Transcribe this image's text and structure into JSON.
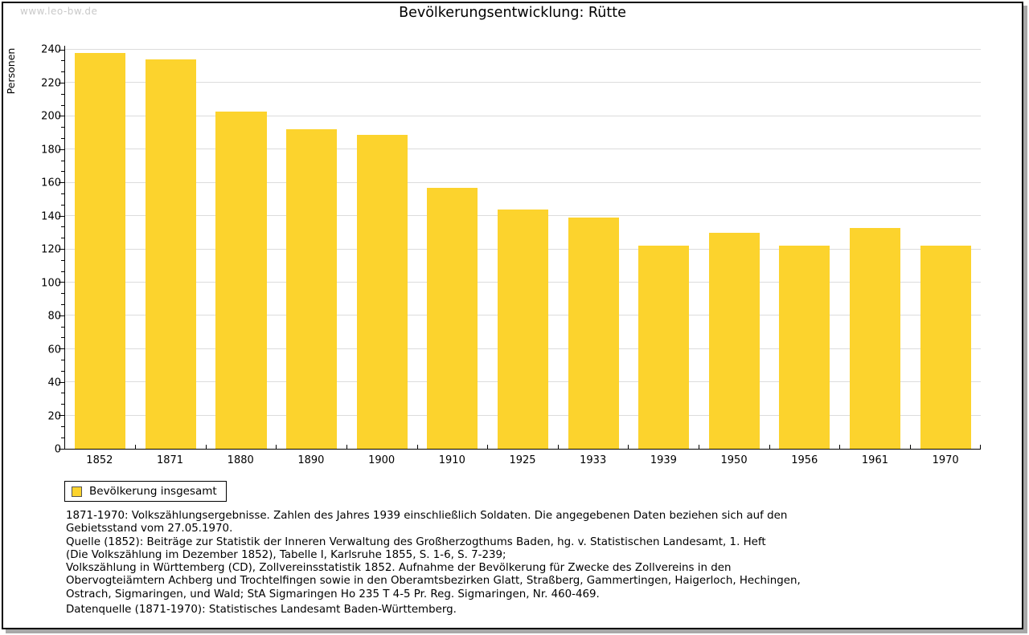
{
  "page": {
    "watermark": "www.leo-bw.de",
    "title": "Bevölkerungsentwicklung: Rütte"
  },
  "chart_data": {
    "type": "bar",
    "title": "Bevölkerungsentwicklung: Rütte",
    "xlabel": "",
    "ylabel": "Personen",
    "ylim": [
      0,
      240
    ],
    "ytick_step": 20,
    "minor_ticks_per_interval": 2,
    "grid": true,
    "bar_color": "#fcd32d",
    "categories": [
      "1852",
      "1871",
      "1880",
      "1890",
      "1900",
      "1910",
      "1925",
      "1933",
      "1939",
      "1950",
      "1956",
      "1961",
      "1970"
    ],
    "values": [
      238,
      234,
      203,
      192,
      189,
      157,
      144,
      139,
      122,
      130,
      122,
      133,
      122
    ],
    "series_name": "Bevölkerung insgesamt",
    "legend_position": "bottom-left"
  },
  "legend": {
    "label": "Bevölkerung insgesamt",
    "swatch_color": "#fcd32d"
  },
  "footnotes": {
    "lines": [
      "1871-1970: Volkszählungsergebnisse. Zahlen des Jahres 1939 einschließlich Soldaten. Die angegebenen Daten beziehen sich auf den",
      "Gebietsstand vom 27.05.1970.",
      "Quelle (1852): Beiträge zur Statistik der Inneren Verwaltung des Großherzogthums Baden, hg. v. Statistischen Landesamt, 1. Heft",
      "(Die Volkszählung im Dezember 1852), Tabelle I, Karlsruhe 1855, S. 1-6, S. 7-239;",
      "Volkszählung in Württemberg (CD), Zollvereinsstatistik 1852. Aufnahme der Bevölkerung für Zwecke des Zollvereins in den",
      "Obervogteiämtern Achberg und Trochtelfingen sowie in den Oberamtsbezirken Glatt, Straßberg, Gammertingen, Haigerloch, Hechingen,",
      "Ostrach, Sigmaringen, und Wald; StA Sigmaringen Ho 235 T 4-5 Pr. Reg. Sigmaringen, Nr. 460-469."
    ],
    "datasource": "Datenquelle (1871-1970): Statistisches Landesamt Baden-Württemberg."
  }
}
